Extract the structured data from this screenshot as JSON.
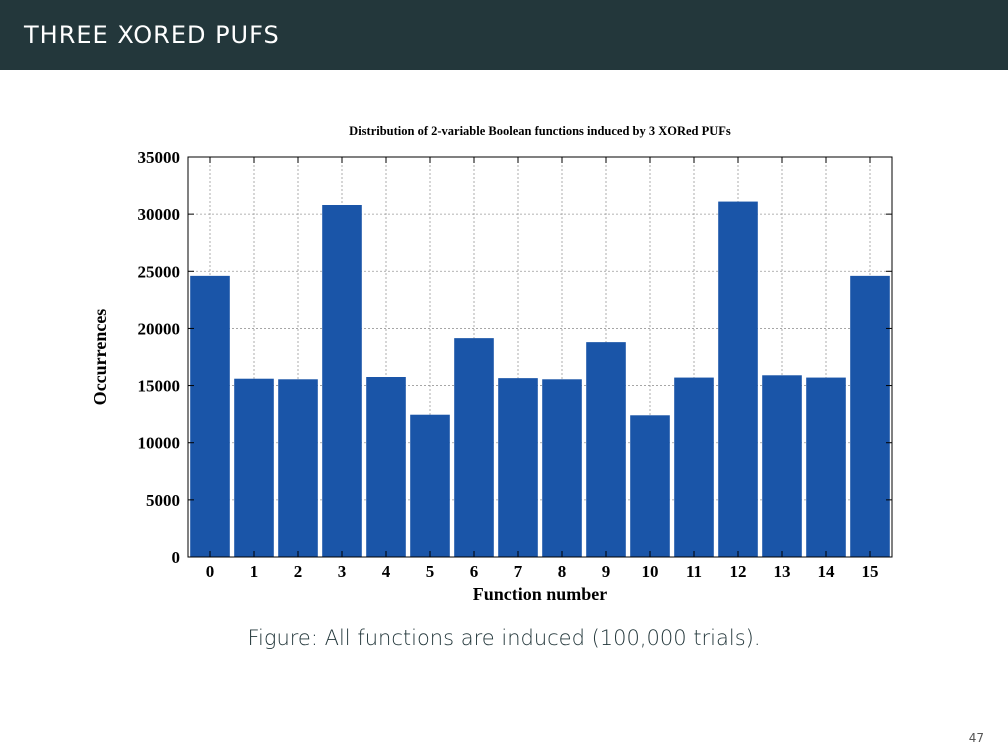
{
  "slide": {
    "title": "THREE XORED PUFS",
    "caption_label": "Figure:",
    "caption_text": "All functions are induced (100,000 trials).",
    "page_number": "47"
  },
  "colors": {
    "header_bg": "#23373b",
    "bar": "#1a55a8",
    "grid": "#9a9a9a"
  },
  "chart_data": {
    "type": "bar",
    "title": "Distribution of 2-variable Boolean functions induced by 3 XORed PUFs",
    "xlabel": "Function number",
    "ylabel": "Occurrences",
    "categories": [
      "0",
      "1",
      "2",
      "3",
      "4",
      "5",
      "6",
      "7",
      "8",
      "9",
      "10",
      "11",
      "12",
      "13",
      "14",
      "15"
    ],
    "values": [
      24600,
      15600,
      15550,
      30800,
      15750,
      12450,
      19150,
      15650,
      15550,
      18800,
      12400,
      15700,
      31100,
      15900,
      15700,
      24600
    ],
    "ylim": [
      0,
      35000
    ],
    "yticks": [
      "0",
      "5000",
      "10000",
      "15000",
      "20000",
      "25000",
      "30000",
      "35000"
    ],
    "grid": true
  }
}
